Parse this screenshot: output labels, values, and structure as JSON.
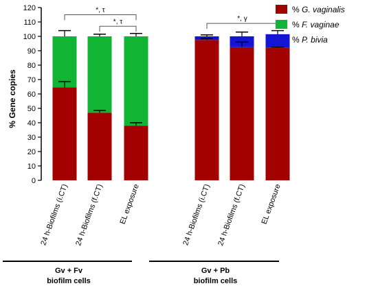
{
  "chart_data": {
    "type": "bar",
    "stacked": true,
    "ylabel": "% Gene copies",
    "ylim": [
      0,
      120
    ],
    "yticks": [
      0,
      10,
      20,
      30,
      40,
      50,
      60,
      70,
      80,
      90,
      100,
      110,
      120
    ],
    "categories": [
      "24 h-Biofilms (i.CT)",
      "24 h-Biofilms (f.CT)",
      "EL exposure",
      "24 h-Biofilms (i.CT)",
      "24 h-Biofilms (f.CT)",
      "EL exposure"
    ],
    "groups": [
      {
        "line1": "Gv + Fv",
        "line2": "biofilm cells",
        "categories": [
          0,
          1,
          2
        ]
      },
      {
        "line1": "Gv + Pb",
        "line2": "biofilm cells",
        "categories": [
          3,
          4,
          5
        ]
      }
    ],
    "series": [
      {
        "name": "% G. vaginalis",
        "color": "#a30000",
        "values": [
          64.5,
          47,
          38,
          97.5,
          92.5,
          92
        ],
        "errors": [
          4,
          1.5,
          2,
          1,
          3.5,
          0.5
        ]
      },
      {
        "name": "% F. vaginae",
        "color": "#12b533",
        "values": [
          35.5,
          53,
          62,
          0,
          0,
          0
        ],
        "errors": [
          4,
          1.5,
          2,
          0,
          0,
          0
        ]
      },
      {
        "name": "% P. bivia",
        "color": "#1414d4",
        "values": [
          0,
          0,
          0,
          2.5,
          7.5,
          9.5
        ],
        "errors": [
          0,
          0,
          0,
          1,
          3,
          2.5
        ]
      }
    ],
    "legend_position": "top-right",
    "annotations": [
      {
        "text": "*, τ",
        "from": 0,
        "to": 2,
        "y": 115
      },
      {
        "text": "*, τ",
        "from": 1,
        "to": 2,
        "y": 107
      },
      {
        "text": "*, γ",
        "from": 3,
        "to": 5,
        "y": 109
      }
    ]
  }
}
